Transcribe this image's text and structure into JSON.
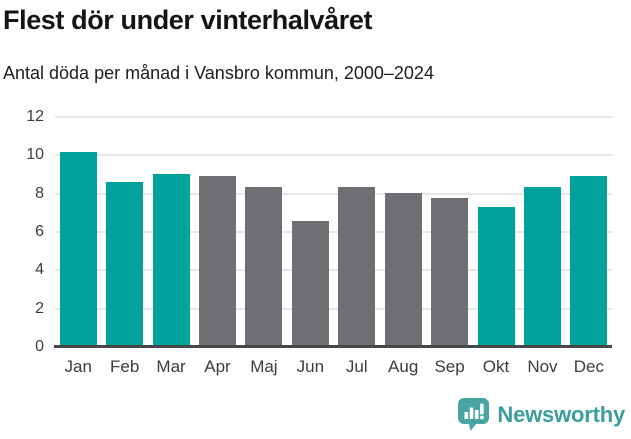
{
  "header": {
    "title": "Flest dör under vinterhalvåret",
    "subtitle": "Antal döda per månad i Vansbro kommun, 2000–2024"
  },
  "chart_data": {
    "type": "bar",
    "title": "Flest dör under vinterhalvåret",
    "subtitle": "Antal döda per månad i Vansbro kommun, 2000–2024",
    "categories": [
      "Jan",
      "Feb",
      "Mar",
      "Apr",
      "Maj",
      "Jun",
      "Jul",
      "Aug",
      "Sep",
      "Okt",
      "Nov",
      "Dec"
    ],
    "values": [
      10.15,
      8.6,
      9.05,
      8.9,
      8.35,
      6.6,
      8.35,
      8.05,
      7.8,
      7.3,
      8.35,
      8.9
    ],
    "highlighted": [
      true,
      true,
      true,
      false,
      false,
      false,
      false,
      false,
      false,
      true,
      true,
      true
    ],
    "yticks": [
      0,
      2,
      4,
      6,
      8,
      10,
      12
    ],
    "ylim": [
      0,
      12
    ],
    "grid": true,
    "legend": "none",
    "colors": {
      "highlight": "#00A39B",
      "regular": "#6E6E73",
      "gridline": "#E7E7E7",
      "axis_line": "#474747",
      "tick_text": "#3C3C3C",
      "title_text": "#141414"
    }
  },
  "footer": {
    "brand": "Newsworthy",
    "brand_color": "#3B9E9B",
    "logo_color": "#48A5A1"
  }
}
